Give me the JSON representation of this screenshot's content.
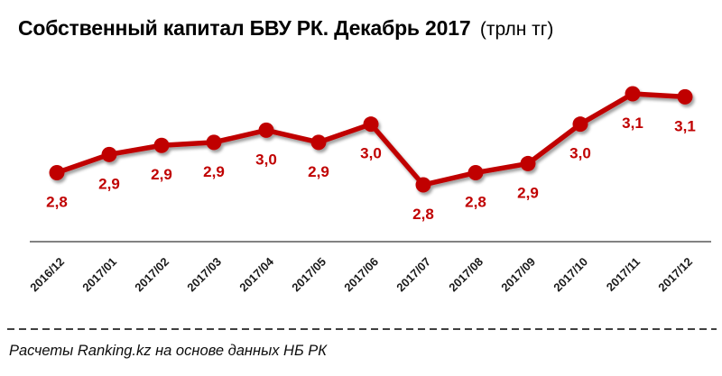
{
  "title": {
    "main": "Собственный капитал БВУ РК. Декабрь 2017",
    "unit": "(трлн тг)"
  },
  "chart_data": {
    "type": "line",
    "title": "Собственный капитал БВУ РК. Декабрь 2017 (трлн тг)",
    "categories": [
      "2016/12",
      "2017/01",
      "2017/02",
      "2017/03",
      "2017/04",
      "2017/05",
      "2017/06",
      "2017/07",
      "2017/08",
      "2017/09",
      "2017/10",
      "2017/11",
      "2017/12"
    ],
    "values": [
      2.84,
      2.9,
      2.93,
      2.94,
      2.98,
      2.94,
      3.0,
      2.8,
      2.84,
      2.87,
      3.0,
      3.1,
      3.09
    ],
    "point_labels": [
      "2,8",
      "2,9",
      "2,9",
      "2,9",
      "3,0",
      "2,9",
      "3,0",
      "2,8",
      "2,8",
      "2,9",
      "3,0",
      "3,1",
      "3,1"
    ],
    "ylim": [
      2.6,
      3.25
    ],
    "xlabel": "",
    "ylabel": "",
    "grid": false,
    "legend": false,
    "series_color": "#c00000",
    "axis_color": "#595959",
    "tick_label_color": "#1a1a1a",
    "tick_label_rotation_deg": -45
  },
  "footer": {
    "source_note": "Расчеты Ranking.kz на основе данных НБ РК"
  }
}
